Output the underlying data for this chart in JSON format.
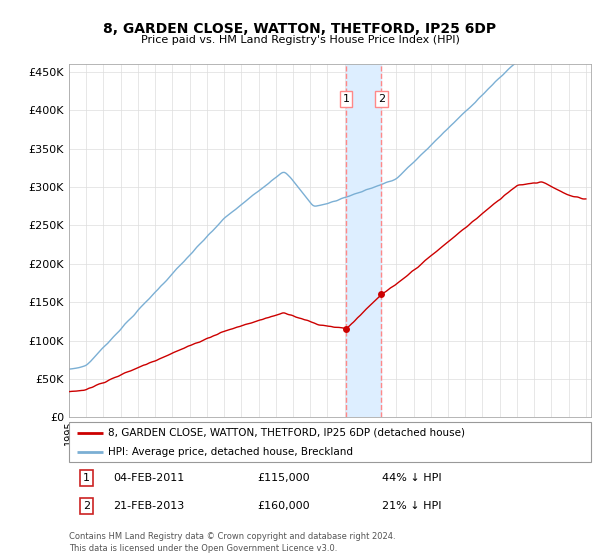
{
  "title": "8, GARDEN CLOSE, WATTON, THETFORD, IP25 6DP",
  "subtitle": "Price paid vs. HM Land Registry's House Price Index (HPI)",
  "ylabel_ticks": [
    "£0",
    "£50K",
    "£100K",
    "£150K",
    "£200K",
    "£250K",
    "£300K",
    "£350K",
    "£400K",
    "£450K"
  ],
  "ytick_values": [
    0,
    50000,
    100000,
    150000,
    200000,
    250000,
    300000,
    350000,
    400000,
    450000
  ],
  "ylim": [
    0,
    460000
  ],
  "x_start_year": 1995,
  "x_end_year": 2025,
  "sale1_year": 2011.08,
  "sale1_price": 115000,
  "sale2_year": 2013.13,
  "sale2_price": 160000,
  "legend_line1": "8, GARDEN CLOSE, WATTON, THETFORD, IP25 6DP (detached house)",
  "legend_line2": "HPI: Average price, detached house, Breckland",
  "footer": "Contains HM Land Registry data © Crown copyright and database right 2024.\nThis data is licensed under the Open Government Licence v3.0.",
  "hpi_color": "#7bafd4",
  "price_color": "#cc0000",
  "sale_color": "#cc0000",
  "shade_color": "#ddeeff",
  "vline_color": "#ff8888",
  "background_color": "#ffffff",
  "grid_color": "#dddddd"
}
